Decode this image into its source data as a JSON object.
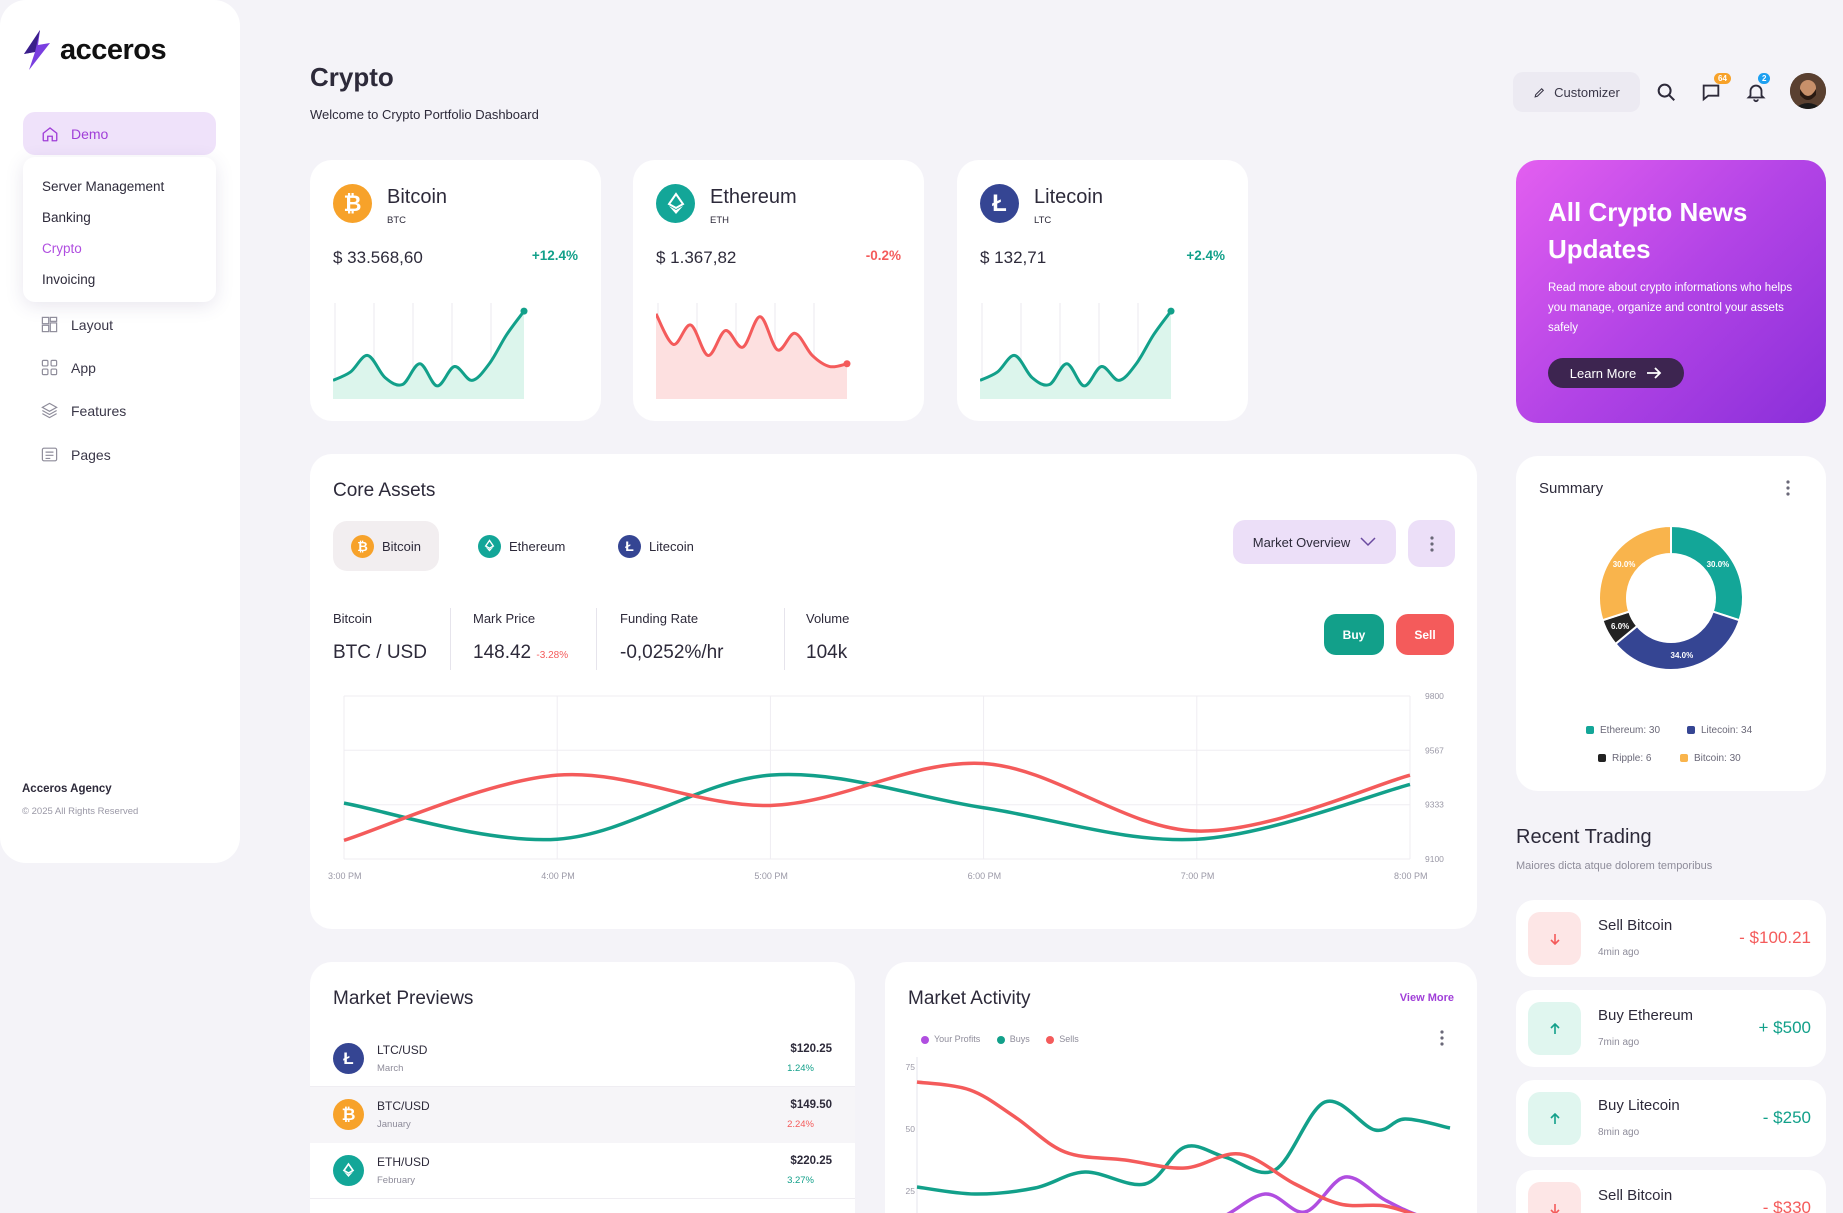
{
  "brand": {
    "name": "acceros",
    "agency": "Acceros Agency",
    "copyright": "© 2025 All Rights Reserved"
  },
  "sidebar": {
    "demo_label": "Demo",
    "submenu": [
      {
        "label": "Server Management",
        "active": false
      },
      {
        "label": "Banking",
        "active": false
      },
      {
        "label": "Crypto",
        "active": true
      },
      {
        "label": "Invoicing",
        "active": false
      }
    ],
    "items": [
      {
        "label": "Layout",
        "icon": "layout-icon"
      },
      {
        "label": "App",
        "icon": "app-grid-icon"
      },
      {
        "label": "Features",
        "icon": "layers-icon"
      },
      {
        "label": "Pages",
        "icon": "pages-icon"
      }
    ]
  },
  "header": {
    "title": "Crypto",
    "subtitle": "Welcome to Crypto Portfolio Dashboard",
    "customizer_label": "Customizer",
    "messages_badge": "64",
    "notifications_badge": "2"
  },
  "coins": [
    {
      "name": "Bitcoin",
      "symbol": "BTC",
      "price": "$ 33.568,60",
      "change": "+12.4%",
      "trend": "up",
      "color": "#f7a22a",
      "spark": [
        12,
        18,
        30,
        14,
        9,
        24,
        8,
        22,
        12,
        24,
        45,
        62
      ]
    },
    {
      "name": "Ethereum",
      "symbol": "ETH",
      "price": "$ 1.367,82",
      "change": "-0.2%",
      "trend": "down",
      "color": "#13a698",
      "spark": [
        60,
        38,
        52,
        30,
        48,
        36,
        58,
        34,
        46,
        30,
        22,
        24
      ]
    },
    {
      "name": "Litecoin",
      "symbol": "LTC",
      "price": "$ 132,71",
      "change": "+2.4%",
      "trend": "up",
      "color": "#354593",
      "spark": [
        12,
        18,
        30,
        14,
        9,
        24,
        8,
        22,
        12,
        24,
        45,
        62
      ]
    }
  ],
  "news": {
    "title": "All Crypto News Updates",
    "body": "Read more about crypto informations who helps you manage, organize and control your assets safely",
    "button": "Learn More"
  },
  "core": {
    "title": "Core Assets",
    "tabs": [
      "Bitcoin",
      "Ethereum",
      "Litecoin"
    ],
    "market_select": "Market Overview",
    "stats": {
      "coin_label": "Bitcoin",
      "pair": "BTC / USD",
      "mark_label": "Mark Price",
      "mark_value": "148.42",
      "mark_change": "-3.28%",
      "funding_label": "Funding Rate",
      "funding_value": "-0,0252%/hr",
      "volume_label": "Volume",
      "volume_value": "104k"
    },
    "buy_label": "Buy",
    "sell_label": "Sell"
  },
  "summary": {
    "title": "Summary",
    "legend": [
      "Ethereum: 30",
      "Litecoin: 34",
      "Ripple: 6",
      "Bitcoin: 30"
    ]
  },
  "recent": {
    "title": "Recent Trading",
    "subtitle": "Maiores dicta atque dolorem temporibus",
    "items": [
      {
        "label": "Sell Bitcoin",
        "time": "4min ago",
        "amount": "- $100.21",
        "type": "sell"
      },
      {
        "label": "Buy Ethereum",
        "time": "7min ago",
        "amount": "+ $500",
        "type": "buy"
      },
      {
        "label": "Buy Litecoin",
        "time": "8min ago",
        "amount": "- $250",
        "type": "buy"
      },
      {
        "label": "Sell Bitcoin",
        "time": "",
        "amount": "- $330",
        "type": "sell"
      }
    ]
  },
  "previews": {
    "title": "Market Previews",
    "rows": [
      {
        "pair": "LTC/USD",
        "month": "March",
        "price": "$120.25",
        "change": "1.24%",
        "trend": "up",
        "coin": "ltc"
      },
      {
        "pair": "BTC/USD",
        "month": "January",
        "price": "$149.50",
        "change": "2.24%",
        "trend": "down",
        "coin": "btc"
      },
      {
        "pair": "ETH/USD",
        "month": "February",
        "price": "$220.25",
        "change": "3.27%",
        "trend": "up",
        "coin": "eth"
      }
    ]
  },
  "activity": {
    "title": "Market Activity",
    "view_more": "View More",
    "legend": [
      "Your Profits",
      "Buys",
      "Sells"
    ]
  },
  "chart_data": [
    {
      "type": "line",
      "x": [
        "3:00 PM",
        "4:00 PM",
        "5:00 PM",
        "6:00 PM",
        "7:00 PM",
        "8:00 PM"
      ],
      "ylim": [
        9100,
        9800
      ],
      "yticks": [
        "9800",
        "9567",
        "9333",
        "9100"
      ],
      "series": [
        {
          "color": "#12a08a",
          "values": [
            9340,
            9185,
            9460,
            9320,
            9185,
            9420
          ]
        },
        {
          "color": "#f45b5b",
          "values": [
            9180,
            9460,
            9330,
            9510,
            9220,
            9460
          ]
        }
      ]
    },
    {
      "type": "pie",
      "labels": [
        "Ethereum",
        "Litecoin",
        "Ripple",
        "Bitcoin"
      ],
      "values": [
        30,
        34,
        6,
        30
      ],
      "slice_labels": [
        "30.0%",
        "34.0%",
        "6.0%",
        "30.0%"
      ],
      "colors": [
        "#13a698",
        "#354593",
        "#222222",
        "#f9b44c"
      ]
    },
    {
      "type": "line",
      "yticks": [
        "75",
        "50",
        "25"
      ],
      "series": [
        {
          "name": "Your Profits",
          "color": "#b04ee0"
        },
        {
          "name": "Buys",
          "color": "#12a08a"
        },
        {
          "name": "Sells",
          "color": "#f45b5b"
        }
      ]
    }
  ]
}
